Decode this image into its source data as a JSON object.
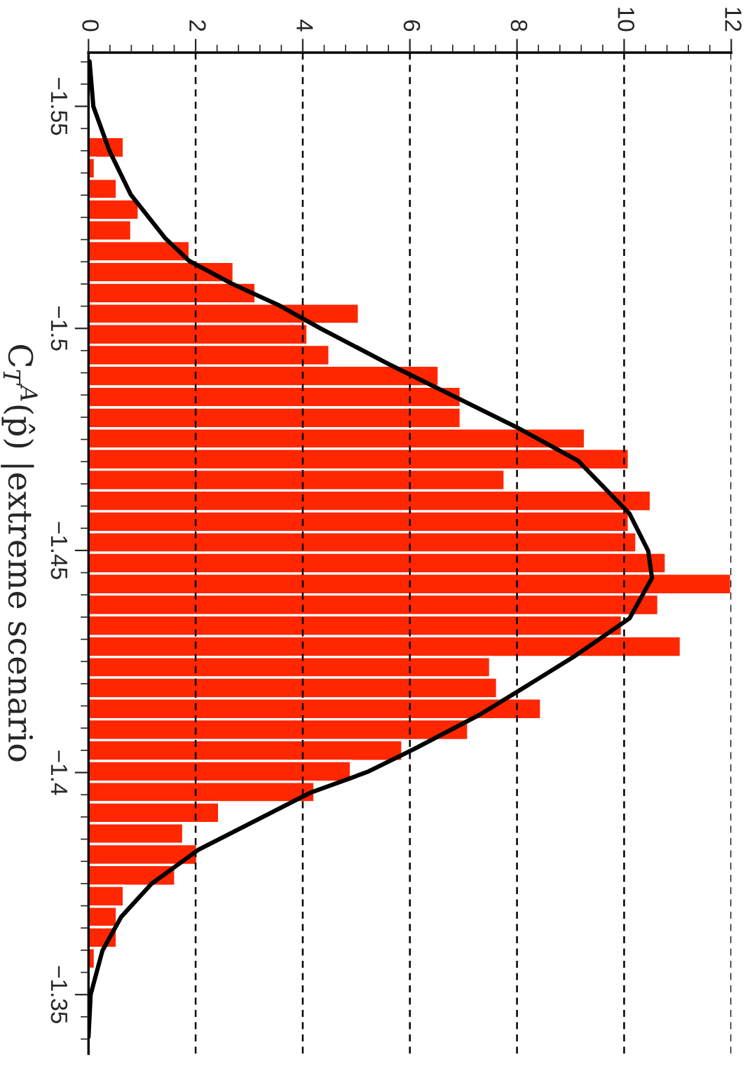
{
  "chart_data": {
    "type": "histogram",
    "orientation": "horizontal",
    "ylabel": "C$_{T}$$^{A}$(p̂) |extreme scenario",
    "bins": [
      -1.5431,
      -1.5384,
      -1.5337,
      -1.5291,
      -1.5244,
      -1.5197,
      -1.515,
      -1.5103,
      -1.5056,
      -1.501,
      -1.4963,
      -1.4916,
      -1.4869,
      -1.4822,
      -1.4775,
      -1.4729,
      -1.4682,
      -1.4635,
      -1.4588,
      -1.4541,
      -1.4495,
      -1.4448,
      -1.4401,
      -1.4354,
      -1.4307,
      -1.426,
      -1.4214,
      -1.4167,
      -1.412,
      -1.4073,
      -1.4026,
      -1.3979,
      -1.3933,
      -1.3886,
      -1.3839,
      -1.3792,
      -1.3745,
      -1.3698,
      -1.3652,
      -1.3605,
      -1.3558
    ],
    "series": [
      {
        "type": "histogram",
        "color": "#ff2600",
        "values": [
          0.66,
          0.12,
          0.53,
          0.94,
          0.8,
          1.89,
          2.71,
          3.12,
          5.05,
          4.09,
          4.5,
          6.54,
          6.95,
          6.95,
          9.27,
          10.09,
          7.77,
          10.5,
          10.09,
          10.23,
          10.78,
          12.0,
          10.64,
          9.96,
          11.06,
          7.5,
          7.63,
          8.45,
          7.09,
          5.86,
          4.9,
          4.22,
          2.44,
          1.77,
          2.03,
          1.62,
          0.66,
          0.53,
          0.53,
          0.12
        ]
      },
      {
        "type": "line",
        "color": "#000000",
        "x": [
          -1.5601,
          -1.55,
          -1.54,
          -1.5301,
          -1.5202,
          -1.5152,
          -1.5101,
          -1.5053,
          -1.5,
          -1.492,
          -1.4777,
          -1.4702,
          -1.4583,
          -1.4499,
          -1.4438,
          -1.4347,
          -1.426,
          -1.4195,
          -1.413,
          -1.4053,
          -1.4001,
          -1.3955,
          -1.388,
          -1.3826,
          -1.375,
          -1.3675,
          -1.3599,
          -1.35,
          -1.3405
        ],
        "values": [
          0.02,
          0.09,
          0.39,
          0.79,
          1.44,
          1.88,
          2.67,
          3.54,
          4.33,
          5.6,
          8.0,
          9.14,
          10.1,
          10.45,
          10.52,
          10.1,
          9.05,
          8.18,
          7.3,
          6.08,
          5.2,
          4.15,
          2.93,
          2.05,
          1.18,
          0.61,
          0.26,
          0.04,
          0.0
        ]
      }
    ],
    "xlim": [
      0,
      12
    ],
    "xticks": [
      0,
      2,
      4,
      6,
      8,
      10,
      12,
      {
        "value": 0.4,
        "label": null
      },
      {
        "value": 0.8,
        "label": null
      },
      {
        "value": 1.2,
        "label": null
      },
      {
        "value": 1.6,
        "label": null
      },
      {
        "value": 2.4,
        "label": null
      },
      {
        "value": 2.8,
        "label": null
      },
      {
        "value": 3.2,
        "label": null
      },
      {
        "value": 3.6,
        "label": null
      },
      {
        "value": 4.4,
        "label": null
      },
      {
        "value": 4.8,
        "label": null
      },
      {
        "value": 5.2,
        "label": null
      },
      {
        "value": 5.6,
        "label": null
      },
      {
        "value": 6.4,
        "label": null
      },
      {
        "value": 6.8,
        "label": null
      },
      {
        "value": 7.2,
        "label": null
      },
      {
        "value": 7.6,
        "label": null
      },
      {
        "value": 8.4,
        "label": null
      },
      {
        "value": 8.8,
        "label": null
      },
      {
        "value": 9.2,
        "label": null
      },
      {
        "value": 9.6,
        "label": null
      },
      {
        "value": 10.4,
        "label": null
      },
      {
        "value": 10.8,
        "label": null
      },
      {
        "value": 11.2,
        "label": null
      },
      {
        "value": 11.6,
        "label": null
      }
    ],
    "ylim": [
      -1.3367,
      -1.5621
    ],
    "yticks": [
      {
        "value": -1.55,
        "label": "−1.55"
      },
      {
        "value": -1.5,
        "label": "−1.5"
      },
      {
        "value": -1.45,
        "label": "−1.45"
      },
      {
        "value": -1.4,
        "label": "−1.4"
      },
      {
        "value": -1.35,
        "label": "−1.35"
      },
      {
        "value": -1.56,
        "label": null
      },
      {
        "value": -1.555,
        "label": null
      },
      {
        "value": -1.545,
        "label": null
      },
      {
        "value": -1.54,
        "label": null
      },
      {
        "value": -1.535,
        "label": null
      },
      {
        "value": -1.53,
        "label": null
      },
      {
        "value": -1.525,
        "label": null
      },
      {
        "value": -1.52,
        "label": null
      },
      {
        "value": -1.515,
        "label": null
      },
      {
        "value": -1.51,
        "label": null
      },
      {
        "value": -1.505,
        "label": null
      },
      {
        "value": -1.495,
        "label": null
      },
      {
        "value": -1.49,
        "label": null
      },
      {
        "value": -1.485,
        "label": null
      },
      {
        "value": -1.48,
        "label": null
      },
      {
        "value": -1.475,
        "label": null
      },
      {
        "value": -1.47,
        "label": null
      },
      {
        "value": -1.465,
        "label": null
      },
      {
        "value": -1.46,
        "label": null
      },
      {
        "value": -1.455,
        "label": null
      },
      {
        "value": -1.445,
        "label": null
      },
      {
        "value": -1.44,
        "label": null
      },
      {
        "value": -1.435,
        "label": null
      },
      {
        "value": -1.43,
        "label": null
      },
      {
        "value": -1.425,
        "label": null
      },
      {
        "value": -1.42,
        "label": null
      },
      {
        "value": -1.415,
        "label": null
      },
      {
        "value": -1.41,
        "label": null
      },
      {
        "value": -1.405,
        "label": null
      },
      {
        "value": -1.395,
        "label": null
      },
      {
        "value": -1.39,
        "label": null
      },
      {
        "value": -1.385,
        "label": null
      },
      {
        "value": -1.38,
        "label": null
      },
      {
        "value": -1.375,
        "label": null
      },
      {
        "value": -1.37,
        "label": null
      },
      {
        "value": -1.365,
        "label": null
      },
      {
        "value": -1.36,
        "label": null
      },
      {
        "value": -1.355,
        "label": null
      },
      {
        "value": -1.345,
        "label": null
      },
      {
        "value": -1.34,
        "label": null
      }
    ],
    "grid": "x"
  }
}
